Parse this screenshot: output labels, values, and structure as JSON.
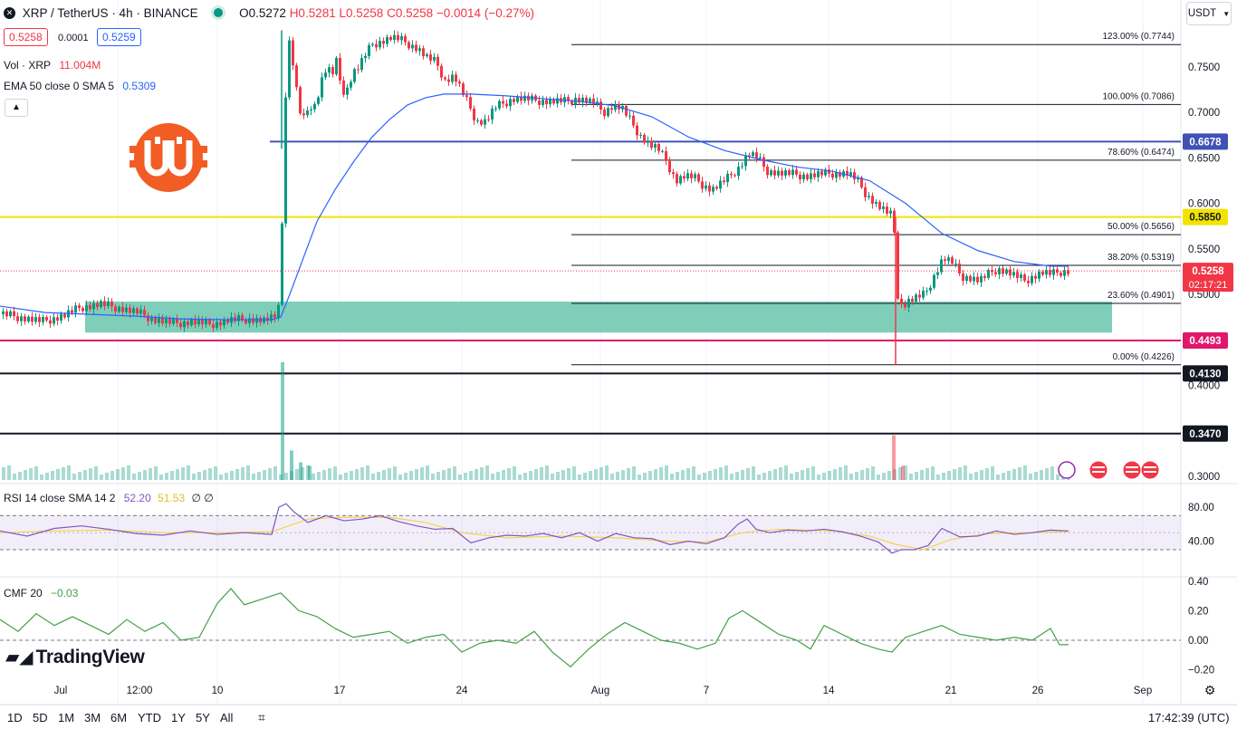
{
  "header": {
    "symbol": "XRP / TetherUS · 4h · BINANCE",
    "open": "O0.5272",
    "high": "H0.5281",
    "low": "L0.5258",
    "close": "C0.5258",
    "change": "−0.0014 (−0.27%)",
    "bid": "0.5258",
    "spread": "0.0001",
    "ask": "0.5259",
    "currency": "USDT"
  },
  "indicators": {
    "volume_label": "Vol · XRP",
    "volume_value": "11.004M",
    "ema_label": "EMA 50 close 0 SMA 5",
    "ema_value": "0.5309",
    "rsi_label": "RSI 14 close SMA 14 2",
    "rsi_value": "52.20",
    "rsi_sma_value": "51.53",
    "rsi_extra": "∅ ∅",
    "cmf_label": "CMF 20",
    "cmf_value": "−0.03"
  },
  "colors": {
    "up": "#089981",
    "down": "#F23645",
    "ema": "#2962FF",
    "rsi": "#7E57C2",
    "rsi_sma": "#F5D34B",
    "cmf": "#43A047",
    "support_zone": "#67C5AE",
    "resistance_line": "#3F51B5",
    "yellow_line": "#F2E400",
    "magenta_line": "#E0176B",
    "logo": "#F25C25"
  },
  "chart_data": {
    "type": "candlestick",
    "y_scale": "linear",
    "ylim": [
      0.29,
      0.79
    ],
    "y_ticks": [
      0.3,
      0.4,
      0.45,
      0.5,
      0.55,
      0.6,
      0.65,
      0.7,
      0.75
    ],
    "x_tick_labels": [
      "Jul",
      "12:00",
      "10",
      "17",
      "24",
      "Aug",
      "7",
      "14",
      "21",
      "26",
      "Sep"
    ],
    "last_price": "0.5258",
    "countdown": "02:17:21",
    "horizontal_levels": [
      {
        "label": "0.6678",
        "value": 0.6678,
        "color": "#3F51B5"
      },
      {
        "label": "0.5850",
        "value": 0.585,
        "color": "#F2E400"
      },
      {
        "label": "0.4493",
        "value": 0.4493,
        "color": "#E0176B"
      },
      {
        "label": "0.4130",
        "value": 0.413,
        "color": "#131722"
      },
      {
        "label": "0.3470",
        "value": 0.347,
        "color": "#131722"
      }
    ],
    "fibonacci": [
      {
        "label": "123.00% (0.7744)",
        "value": 0.7744
      },
      {
        "label": "100.00% (0.7086)",
        "value": 0.7086
      },
      {
        "label": "78.60% (0.6474)",
        "value": 0.6474
      },
      {
        "label": "50.00% (0.5656)",
        "value": 0.5656
      },
      {
        "label": "38.20% (0.5319)",
        "value": 0.5319
      },
      {
        "label": "23.60% (0.4901)",
        "value": 0.4901
      },
      {
        "label": "0.00% (0.4226)",
        "value": 0.4226
      }
    ],
    "support_zone": {
      "from": 0.458,
      "to": 0.492
    },
    "price_path": [
      [
        0,
        0.478
      ],
      [
        20,
        0.475
      ],
      [
        45,
        0.47
      ],
      [
        70,
        0.477
      ],
      [
        88,
        0.486
      ],
      [
        110,
        0.489
      ],
      [
        130,
        0.485
      ],
      [
        150,
        0.48
      ],
      [
        170,
        0.472
      ],
      [
        190,
        0.468
      ],
      [
        210,
        0.47
      ],
      [
        230,
        0.467
      ],
      [
        250,
        0.471
      ],
      [
        270,
        0.473
      ],
      [
        290,
        0.471
      ],
      [
        305,
        0.475
      ],
      [
        308,
        0.53
      ],
      [
        311,
        0.6
      ],
      [
        314,
        0.72
      ],
      [
        317,
        0.78
      ],
      [
        320,
        0.77
      ],
      [
        325,
        0.73
      ],
      [
        330,
        0.7
      ],
      [
        335,
        0.69
      ],
      [
        340,
        0.71
      ],
      [
        345,
        0.705
      ],
      [
        350,
        0.72
      ],
      [
        355,
        0.74
      ],
      [
        360,
        0.75
      ],
      [
        365,
        0.74
      ],
      [
        370,
        0.755
      ],
      [
        375,
        0.73
      ],
      [
        380,
        0.72
      ],
      [
        385,
        0.735
      ],
      [
        390,
        0.745
      ],
      [
        395,
        0.75
      ],
      [
        400,
        0.76
      ],
      [
        410,
        0.775
      ],
      [
        420,
        0.778
      ],
      [
        430,
        0.782
      ],
      [
        440,
        0.78
      ],
      [
        450,
        0.775
      ],
      [
        460,
        0.77
      ],
      [
        470,
        0.76
      ],
      [
        480,
        0.755
      ],
      [
        490,
        0.735
      ],
      [
        500,
        0.74
      ],
      [
        505,
        0.73
      ],
      [
        515,
        0.71
      ],
      [
        525,
        0.69
      ],
      [
        535,
        0.69
      ],
      [
        545,
        0.705
      ],
      [
        555,
        0.71
      ],
      [
        565,
        0.715
      ],
      [
        575,
        0.715
      ],
      [
        590,
        0.713
      ],
      [
        610,
        0.712
      ],
      [
        625,
        0.712
      ],
      [
        635,
        0.715
      ],
      [
        645,
        0.713
      ],
      [
        655,
        0.71
      ],
      [
        665,
        0.7
      ],
      [
        675,
        0.707
      ],
      [
        685,
        0.705
      ],
      [
        695,
        0.69
      ],
      [
        705,
        0.675
      ],
      [
        715,
        0.665
      ],
      [
        725,
        0.66
      ],
      [
        735,
        0.645
      ],
      [
        745,
        0.625
      ],
      [
        755,
        0.63
      ],
      [
        765,
        0.628
      ],
      [
        775,
        0.62
      ],
      [
        785,
        0.615
      ],
      [
        795,
        0.622
      ],
      [
        805,
        0.63
      ],
      [
        815,
        0.64
      ],
      [
        825,
        0.655
      ],
      [
        835,
        0.65
      ],
      [
        845,
        0.636
      ],
      [
        860,
        0.633
      ],
      [
        875,
        0.632
      ],
      [
        890,
        0.63
      ],
      [
        905,
        0.632
      ],
      [
        920,
        0.633
      ],
      [
        935,
        0.633
      ],
      [
        945,
        0.625
      ],
      [
        955,
        0.61
      ],
      [
        965,
        0.6
      ],
      [
        975,
        0.592
      ],
      [
        985,
        0.585
      ],
      [
        990,
        0.5
      ],
      [
        995,
        0.485
      ],
      [
        1000,
        0.492
      ],
      [
        1010,
        0.496
      ],
      [
        1020,
        0.5
      ],
      [
        1030,
        0.52
      ],
      [
        1040,
        0.54
      ],
      [
        1050,
        0.535
      ],
      [
        1060,
        0.52
      ],
      [
        1070,
        0.518
      ],
      [
        1080,
        0.515
      ],
      [
        1090,
        0.522
      ],
      [
        1100,
        0.528
      ],
      [
        1110,
        0.525
      ],
      [
        1120,
        0.52
      ],
      [
        1130,
        0.515
      ],
      [
        1140,
        0.52
      ],
      [
        1150,
        0.524
      ],
      [
        1160,
        0.522
      ],
      [
        1170,
        0.525
      ],
      [
        1180,
        0.526
      ]
    ],
    "ema_path": [
      [
        0,
        0.487
      ],
      [
        50,
        0.48
      ],
      [
        100,
        0.478
      ],
      [
        150,
        0.476
      ],
      [
        200,
        0.473
      ],
      [
        250,
        0.472
      ],
      [
        300,
        0.472
      ],
      [
        310,
        0.475
      ],
      [
        320,
        0.5
      ],
      [
        335,
        0.54
      ],
      [
        350,
        0.58
      ],
      [
        370,
        0.615
      ],
      [
        390,
        0.645
      ],
      [
        410,
        0.672
      ],
      [
        430,
        0.692
      ],
      [
        450,
        0.708
      ],
      [
        470,
        0.716
      ],
      [
        490,
        0.72
      ],
      [
        520,
        0.72
      ],
      [
        560,
        0.718
      ],
      [
        600,
        0.715
      ],
      [
        640,
        0.712
      ],
      [
        680,
        0.707
      ],
      [
        720,
        0.695
      ],
      [
        760,
        0.673
      ],
      [
        800,
        0.658
      ],
      [
        840,
        0.648
      ],
      [
        880,
        0.64
      ],
      [
        920,
        0.635
      ],
      [
        960,
        0.625
      ],
      [
        1000,
        0.6
      ],
      [
        1040,
        0.567
      ],
      [
        1080,
        0.548
      ],
      [
        1120,
        0.536
      ],
      [
        1160,
        0.531
      ],
      [
        1180,
        0.531
      ]
    ],
    "volume_spikes": [
      [
        310,
        1.0
      ],
      [
        320,
        0.25
      ],
      [
        330,
        0.15
      ],
      [
        340,
        0.12
      ],
      [
        985,
        0.38
      ],
      [
        995,
        0.12
      ]
    ],
    "rsi_ylim": [
      20,
      90
    ],
    "rsi_ticks": [
      80,
      40
    ],
    "rsi_bands": [
      70,
      30
    ],
    "rsi_path": [
      [
        0,
        52
      ],
      [
        30,
        46
      ],
      [
        60,
        55
      ],
      [
        90,
        58
      ],
      [
        120,
        54
      ],
      [
        150,
        49
      ],
      [
        180,
        47
      ],
      [
        210,
        52
      ],
      [
        240,
        48
      ],
      [
        270,
        50
      ],
      [
        300,
        48
      ],
      [
        308,
        80
      ],
      [
        316,
        84
      ],
      [
        325,
        74
      ],
      [
        340,
        62
      ],
      [
        360,
        70
      ],
      [
        380,
        64
      ],
      [
        400,
        66
      ],
      [
        420,
        70
      ],
      [
        440,
        63
      ],
      [
        460,
        58
      ],
      [
        480,
        54
      ],
      [
        500,
        55
      ],
      [
        520,
        38
      ],
      [
        540,
        44
      ],
      [
        560,
        47
      ],
      [
        580,
        46
      ],
      [
        600,
        49
      ],
      [
        620,
        44
      ],
      [
        640,
        50
      ],
      [
        660,
        40
      ],
      [
        680,
        49
      ],
      [
        700,
        44
      ],
      [
        720,
        43
      ],
      [
        740,
        36
      ],
      [
        760,
        40
      ],
      [
        780,
        37
      ],
      [
        800,
        44
      ],
      [
        815,
        60
      ],
      [
        825,
        66
      ],
      [
        835,
        54
      ],
      [
        850,
        50
      ],
      [
        870,
        53
      ],
      [
        890,
        52
      ],
      [
        910,
        54
      ],
      [
        930,
        51
      ],
      [
        950,
        46
      ],
      [
        970,
        39
      ],
      [
        985,
        26
      ],
      [
        995,
        30
      ],
      [
        1010,
        30
      ],
      [
        1025,
        35
      ],
      [
        1040,
        55
      ],
      [
        1060,
        45
      ],
      [
        1080,
        46
      ],
      [
        1100,
        52
      ],
      [
        1120,
        48
      ],
      [
        1140,
        50
      ],
      [
        1160,
        53
      ],
      [
        1180,
        52
      ]
    ],
    "rsi_sma_path": [
      [
        0,
        50
      ],
      [
        60,
        52
      ],
      [
        120,
        53
      ],
      [
        180,
        50
      ],
      [
        240,
        50
      ],
      [
        300,
        51
      ],
      [
        340,
        66
      ],
      [
        380,
        68
      ],
      [
        430,
        68
      ],
      [
        470,
        62
      ],
      [
        510,
        50
      ],
      [
        560,
        44
      ],
      [
        620,
        46
      ],
      [
        680,
        44
      ],
      [
        740,
        40
      ],
      [
        780,
        39
      ],
      [
        820,
        50
      ],
      [
        860,
        54
      ],
      [
        920,
        52
      ],
      [
        960,
        46
      ],
      [
        990,
        36
      ],
      [
        1020,
        30
      ],
      [
        1050,
        42
      ],
      [
        1090,
        49
      ],
      [
        1140,
        50
      ],
      [
        1180,
        51.5
      ]
    ],
    "cmf_ylim": [
      -0.25,
      0.45
    ],
    "cmf_ticks": [
      0.4,
      0.2,
      0.0,
      -0.2
    ],
    "cmf_path": [
      [
        0,
        0.14
      ],
      [
        20,
        0.06
      ],
      [
        40,
        0.18
      ],
      [
        60,
        0.1
      ],
      [
        80,
        0.16
      ],
      [
        100,
        0.1
      ],
      [
        120,
        0.04
      ],
      [
        140,
        0.14
      ],
      [
        160,
        0.06
      ],
      [
        180,
        0.12
      ],
      [
        200,
        0.0
      ],
      [
        220,
        0.02
      ],
      [
        240,
        0.25
      ],
      [
        255,
        0.35
      ],
      [
        270,
        0.24
      ],
      [
        290,
        0.28
      ],
      [
        310,
        0.32
      ],
      [
        330,
        0.2
      ],
      [
        350,
        0.16
      ],
      [
        370,
        0.08
      ],
      [
        390,
        0.02
      ],
      [
        410,
        0.04
      ],
      [
        430,
        0.06
      ],
      [
        450,
        -0.02
      ],
      [
        470,
        0.02
      ],
      [
        490,
        0.04
      ],
      [
        510,
        -0.08
      ],
      [
        530,
        -0.02
      ],
      [
        550,
        0.0
      ],
      [
        570,
        -0.02
      ],
      [
        590,
        0.06
      ],
      [
        610,
        -0.08
      ],
      [
        630,
        -0.18
      ],
      [
        650,
        -0.06
      ],
      [
        670,
        0.04
      ],
      [
        690,
        0.12
      ],
      [
        710,
        0.06
      ],
      [
        730,
        0.0
      ],
      [
        750,
        -0.02
      ],
      [
        770,
        -0.06
      ],
      [
        790,
        -0.02
      ],
      [
        805,
        0.15
      ],
      [
        820,
        0.2
      ],
      [
        840,
        0.12
      ],
      [
        860,
        0.04
      ],
      [
        880,
        0.0
      ],
      [
        895,
        -0.06
      ],
      [
        910,
        0.1
      ],
      [
        930,
        0.04
      ],
      [
        950,
        -0.02
      ],
      [
        970,
        -0.06
      ],
      [
        985,
        -0.08
      ],
      [
        1000,
        0.02
      ],
      [
        1020,
        0.06
      ],
      [
        1040,
        0.1
      ],
      [
        1060,
        0.04
      ],
      [
        1080,
        0.02
      ],
      [
        1100,
        0.0
      ],
      [
        1120,
        0.02
      ],
      [
        1140,
        0.0
      ],
      [
        1160,
        0.08
      ],
      [
        1170,
        -0.03
      ],
      [
        1180,
        -0.03
      ]
    ]
  },
  "toolbar": {
    "timeframes": [
      "1D",
      "5D",
      "1M",
      "3M",
      "6M",
      "YTD",
      "1Y",
      "5Y",
      "All"
    ],
    "clock": "17:42:39 (UTC)"
  },
  "branding": {
    "tradingview": "TradingView"
  }
}
